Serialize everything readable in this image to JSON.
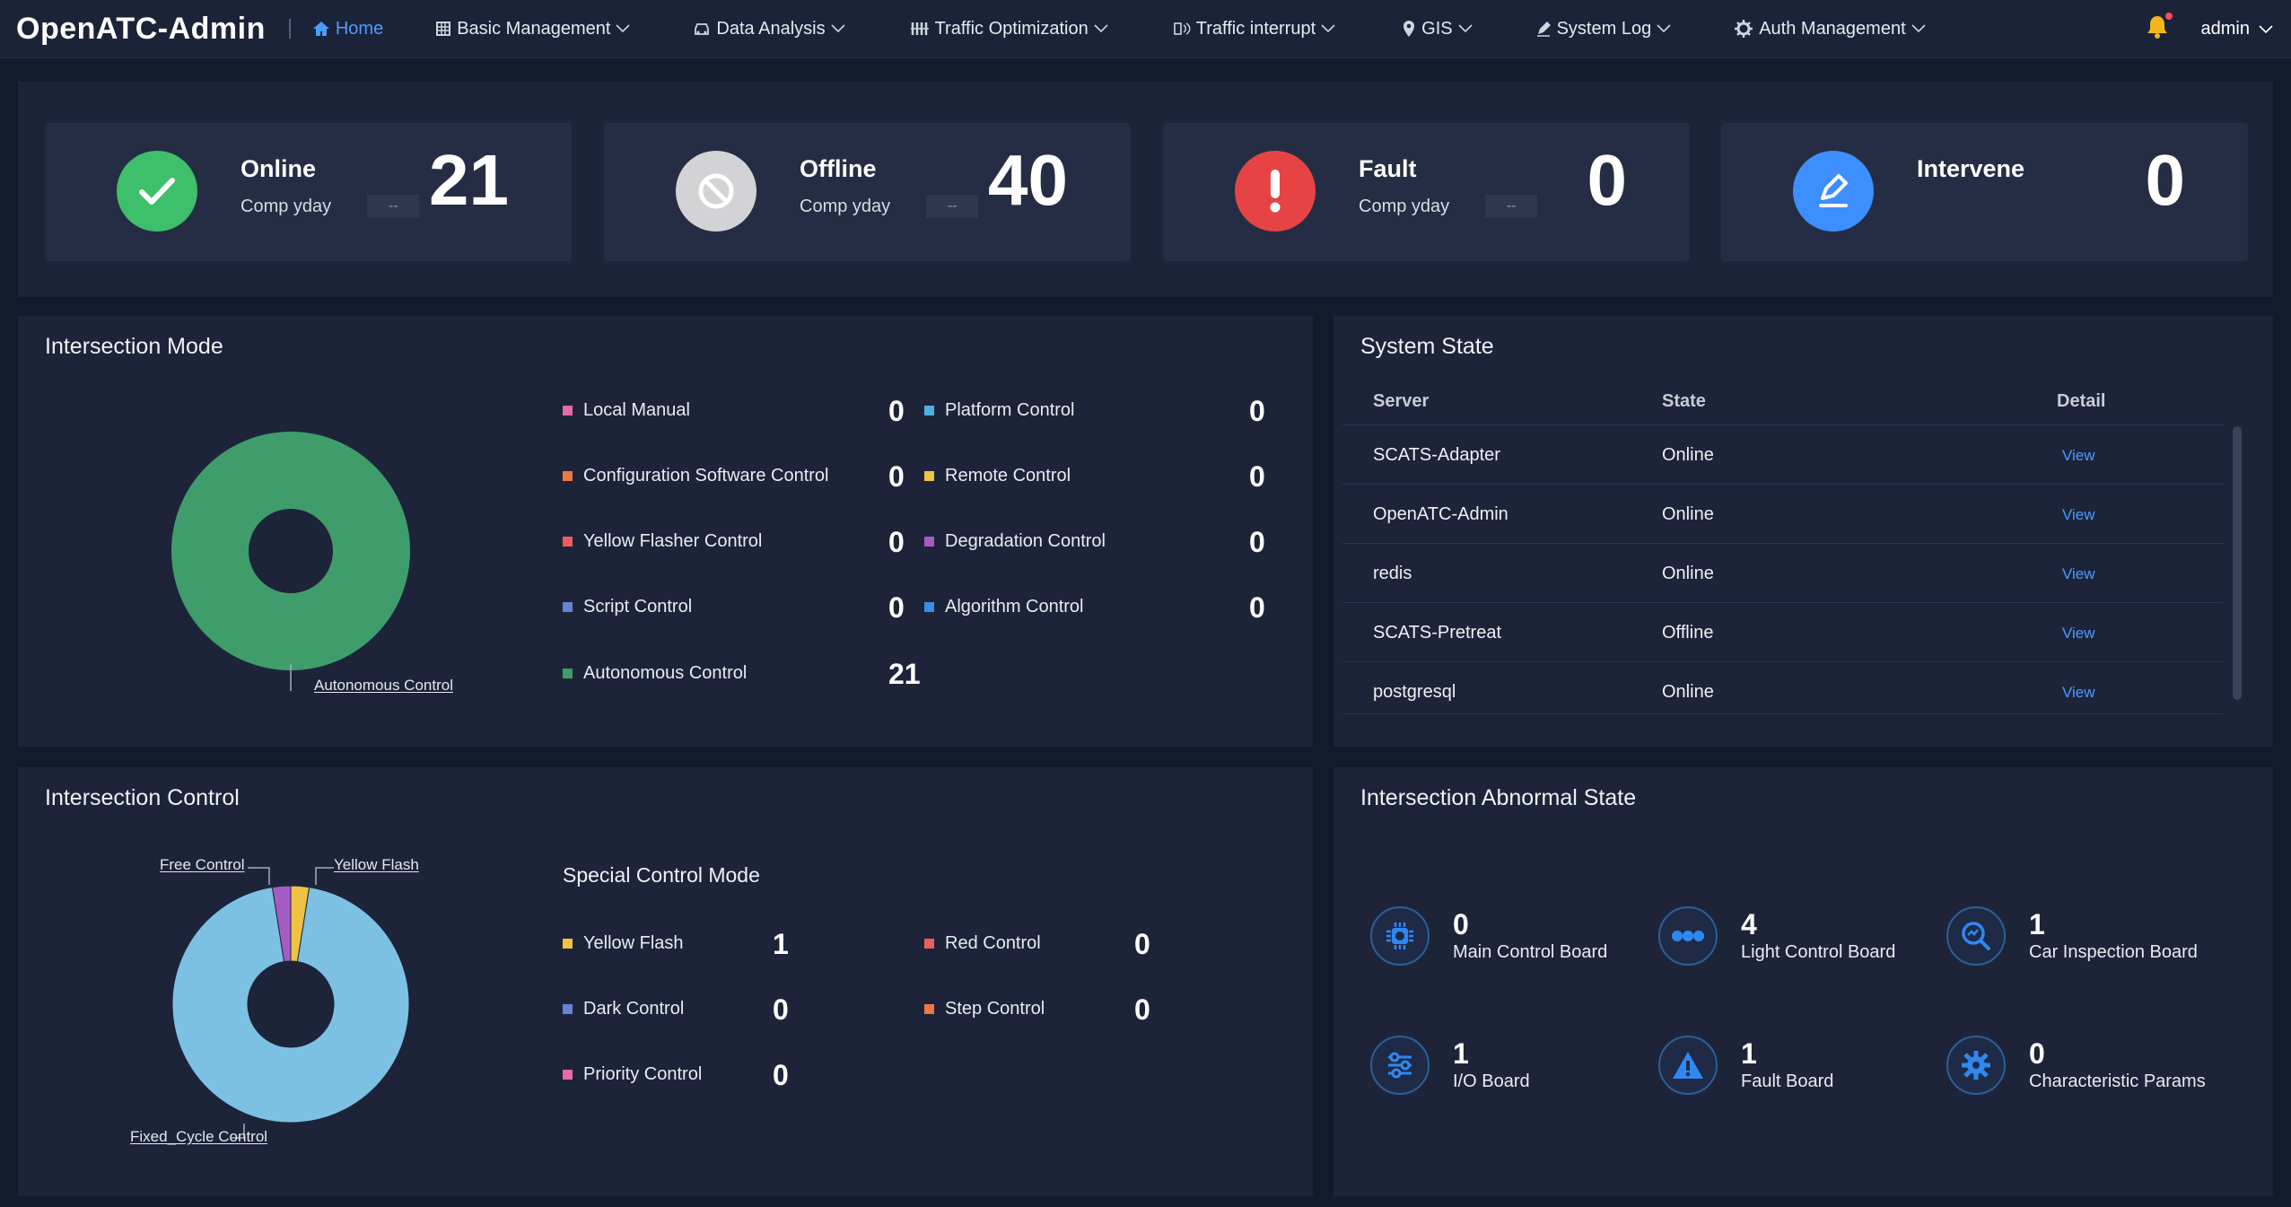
{
  "header": {
    "logo": "OpenATC-Admin",
    "nav": [
      {
        "label": "Home",
        "icon": "home-icon"
      },
      {
        "label": "Basic Management",
        "icon": "cube-icon"
      },
      {
        "label": "Data Analysis",
        "icon": "car-icon"
      },
      {
        "label": "Traffic Optimization",
        "icon": "signal-icon"
      },
      {
        "label": "Traffic interrupt",
        "icon": "interrupt-icon"
      },
      {
        "label": "GIS",
        "icon": "pin-icon"
      },
      {
        "label": "System Log",
        "icon": "pen-icon"
      },
      {
        "label": "Auth Management",
        "icon": "gear-icon"
      }
    ],
    "user": "admin"
  },
  "cards": [
    {
      "label": "Online",
      "comp": "Comp yday",
      "badge": "--",
      "value": "21",
      "color": "#3ebf6b"
    },
    {
      "label": "Offline",
      "comp": "Comp yday",
      "badge": "--",
      "value": "40",
      "color": "#d3d3d6"
    },
    {
      "label": "Fault",
      "comp": "Comp yday",
      "badge": "--",
      "value": "0",
      "color": "#e64444"
    },
    {
      "label": "Intervene",
      "value": "0",
      "color": "#3d8eff"
    }
  ],
  "intersection_mode": {
    "title": "Intersection Mode",
    "legend": [
      {
        "label": "Local Manual",
        "value": "0",
        "color": "#e86aa8"
      },
      {
        "label": "Platform Control",
        "value": "0",
        "color": "#4fb0e0"
      },
      {
        "label": "Configuration Software Control",
        "value": "0",
        "color": "#ee7744"
      },
      {
        "label": "Remote Control",
        "value": "0",
        "color": "#f0c242"
      },
      {
        "label": "Yellow Flasher Control",
        "value": "0",
        "color": "#ee5d5d"
      },
      {
        "label": "Degradation Control",
        "value": "0",
        "color": "#a55bc4"
      },
      {
        "label": "Script Control",
        "value": "0",
        "color": "#6a7fd6"
      },
      {
        "label": "Algorithm Control",
        "value": "0",
        "color": "#3a8ee6"
      },
      {
        "label": "Autonomous Control",
        "value": "21",
        "color": "#3f9d6b"
      }
    ],
    "chart_label": "Autonomous Control"
  },
  "system_state": {
    "title": "System State",
    "headers": [
      "Server",
      "State",
      "Detail"
    ],
    "rows": [
      {
        "server": "SCATS-Adapter",
        "state": "Online",
        "detail": "View"
      },
      {
        "server": "OpenATC-Admin",
        "state": "Online",
        "detail": "View"
      },
      {
        "server": "redis",
        "state": "Online",
        "detail": "View"
      },
      {
        "server": "SCATS-Pretreat",
        "state": "Offline",
        "detail": "View"
      },
      {
        "server": "postgresql",
        "state": "Online",
        "detail": "View"
      }
    ]
  },
  "intersection_control": {
    "title": "Intersection Control",
    "special_title": "Special Control Mode",
    "legend": [
      {
        "label": "Yellow Flash",
        "value": "1",
        "color": "#f0c242"
      },
      {
        "label": "Red Control",
        "value": "0",
        "color": "#ee5d5d"
      },
      {
        "label": "Dark Control",
        "value": "0",
        "color": "#6a7fd6"
      },
      {
        "label": "Step Control",
        "value": "0",
        "color": "#ee7744"
      },
      {
        "label": "Priority Control",
        "value": "0",
        "color": "#e86aa8"
      }
    ],
    "chart_labels": {
      "free": "Free Control",
      "yellow": "Yellow Flash",
      "fixed": "Fixed_Cycle Control"
    }
  },
  "abnormal": {
    "title": "Intersection Abnormal State",
    "items": [
      {
        "value": "0",
        "label": "Main Control Board",
        "icon": "chip-icon"
      },
      {
        "value": "4",
        "label": "Light Control Board",
        "icon": "dots-icon"
      },
      {
        "value": "1",
        "label": "Car Inspection Board",
        "icon": "inspect-icon"
      },
      {
        "value": "1",
        "label": "I/O Board",
        "icon": "sliders-icon"
      },
      {
        "value": "1",
        "label": "Fault Board",
        "icon": "warning-icon"
      },
      {
        "value": "0",
        "label": "Characteristic Params",
        "icon": "gear-icon"
      }
    ]
  },
  "chart_data": [
    {
      "type": "pie",
      "title": "Intersection Mode",
      "categories": [
        "Autonomous Control"
      ],
      "values": [
        21
      ],
      "colors": [
        "#3f9d6b"
      ]
    },
    {
      "type": "pie",
      "title": "Intersection Control",
      "categories": [
        "Fixed_Cycle Control",
        "Free Control",
        "Yellow Flash"
      ],
      "values": [
        38,
        1,
        1
      ],
      "colors": [
        "#7cc1e3",
        "#a55bc4",
        "#f0c242"
      ]
    }
  ]
}
